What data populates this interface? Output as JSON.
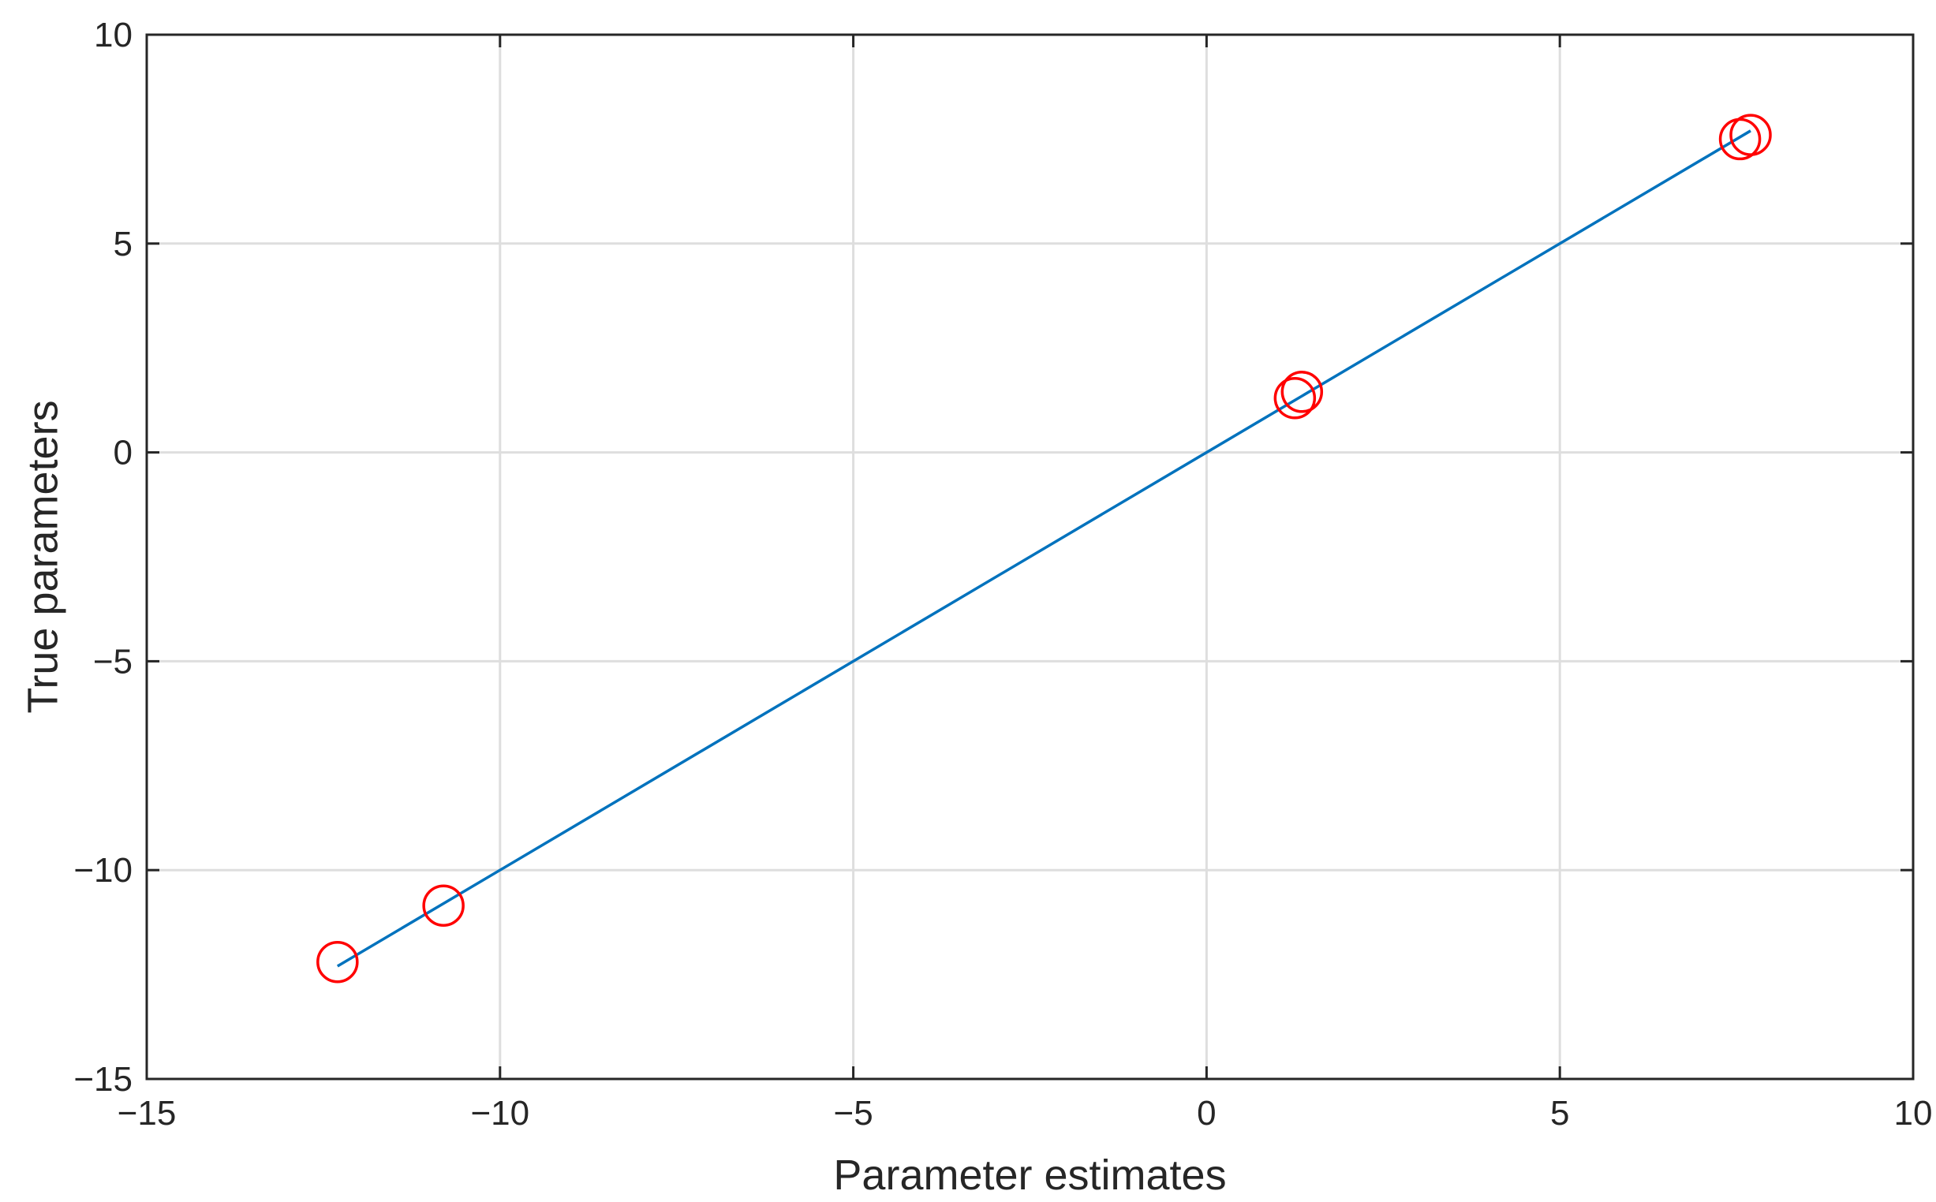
{
  "chart_data": {
    "type": "scatter",
    "title": "",
    "xlabel": "Parameter estimates",
    "ylabel": "True parameters",
    "xlim": [
      -15,
      10
    ],
    "ylim": [
      -15,
      10
    ],
    "xticks": [
      -15,
      -10,
      -5,
      0,
      5,
      10
    ],
    "yticks": [
      -15,
      -10,
      -5,
      0,
      5,
      10
    ],
    "xtick_labels": [
      "−15",
      "−10",
      "−5",
      "0",
      "5",
      "10"
    ],
    "ytick_labels": [
      "−15",
      "−10",
      "−5",
      "0",
      "5",
      "10"
    ],
    "grid": true,
    "legend": "none",
    "series": [
      {
        "type": "scatter",
        "marker": "circle",
        "color": "#ff0000",
        "points": [
          {
            "x": -12.3,
            "y": -12.2
          },
          {
            "x": -10.8,
            "y": -10.85
          },
          {
            "x": 1.25,
            "y": 1.3
          },
          {
            "x": 1.35,
            "y": 1.45
          },
          {
            "x": 7.55,
            "y": 7.5
          },
          {
            "x": 7.7,
            "y": 7.6
          }
        ]
      },
      {
        "type": "line",
        "color": "#0072bd",
        "points": [
          {
            "x": -12.3,
            "y": -12.3
          },
          {
            "x": 7.7,
            "y": 7.7
          }
        ]
      }
    ]
  }
}
